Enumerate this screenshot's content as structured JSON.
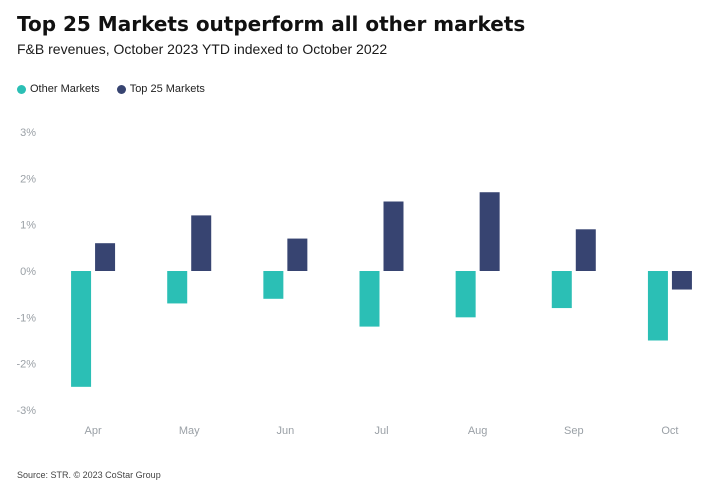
{
  "header": {
    "title": "Top 25 Markets outperform all other markets",
    "subtitle": "F&B revenues, October 2023 YTD indexed to October 2022"
  },
  "footer": {
    "source": "Source: STR. © 2023 CoStar Group"
  },
  "colors": {
    "other_markets": "#2bbfb5",
    "top25_markets": "#374471",
    "axis_text": "#9aa0a6"
  },
  "chart_data": {
    "type": "bar",
    "title": "Top 25 Markets outperform all other markets",
    "subtitle": "F&B revenues, October 2023 YTD indexed to October 2022",
    "xlabel": "",
    "ylabel": "",
    "categories": [
      "Apr",
      "May",
      "Jun",
      "Jul",
      "Aug",
      "Sep",
      "Oct"
    ],
    "series": [
      {
        "name": "Other Markets",
        "color": "#2bbfb5",
        "values": [
          -2.5,
          -0.7,
          -0.6,
          -1.2,
          -1.0,
          -0.8,
          -1.5
        ]
      },
      {
        "name": "Top 25 Markets",
        "color": "#374471",
        "values": [
          0.6,
          1.2,
          0.7,
          1.5,
          1.7,
          0.9,
          -0.4
        ]
      }
    ],
    "ylim": [
      -3,
      3
    ],
    "yticks": [
      3,
      2,
      1,
      0,
      -1,
      -2,
      -3
    ],
    "ytick_labels": [
      "3%",
      "2%",
      "1%",
      "0%",
      "-1%",
      "-2%",
      "-3%"
    ],
    "legend_position": "top-left",
    "grid": false
  }
}
